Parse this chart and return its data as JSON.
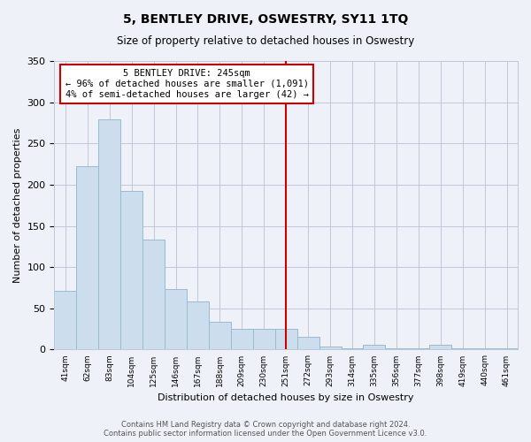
{
  "title": "5, BENTLEY DRIVE, OSWESTRY, SY11 1TQ",
  "subtitle": "Size of property relative to detached houses in Oswestry",
  "xlabel": "Distribution of detached houses by size in Oswestry",
  "ylabel": "Number of detached properties",
  "bar_labels": [
    "41sqm",
    "62sqm",
    "83sqm",
    "104sqm",
    "125sqm",
    "146sqm",
    "167sqm",
    "188sqm",
    "209sqm",
    "230sqm",
    "251sqm",
    "272sqm",
    "293sqm",
    "314sqm",
    "335sqm",
    "356sqm",
    "377sqm",
    "398sqm",
    "419sqm",
    "440sqm",
    "461sqm"
  ],
  "bar_values": [
    71,
    222,
    279,
    192,
    133,
    73,
    58,
    34,
    25,
    25,
    25,
    15,
    4,
    1,
    6,
    1,
    1,
    6,
    1,
    1,
    1
  ],
  "bar_color": "#ccdded",
  "bar_edge_color": "#99bbcc",
  "highlight_line_index": 10,
  "highlight_color": "#cc0000",
  "annotation_title": "5 BENTLEY DRIVE: 245sqm",
  "annotation_line1": "← 96% of detached houses are smaller (1,091)",
  "annotation_line2": "4% of semi-detached houses are larger (42) →",
  "ylim": [
    0,
    350
  ],
  "yticks": [
    0,
    50,
    100,
    150,
    200,
    250,
    300,
    350
  ],
  "footer_line1": "Contains HM Land Registry data © Crown copyright and database right 2024.",
  "footer_line2": "Contains public sector information licensed under the Open Government Licence v3.0.",
  "bg_color": "#eef2f8",
  "plot_bg_color": "#eef2f8",
  "grid_color": "#c0c8d8"
}
